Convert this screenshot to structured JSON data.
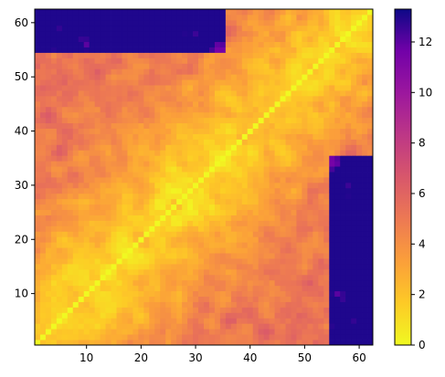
{
  "chart_data": {
    "type": "heatmap",
    "title": "",
    "xlabel": "",
    "ylabel": "",
    "n": 62,
    "x_range": [
      1,
      62
    ],
    "y_range": [
      1,
      62
    ],
    "x_ticks": [
      10,
      20,
      30,
      40,
      50,
      60
    ],
    "y_ticks": [
      10,
      20,
      30,
      40,
      50,
      60
    ],
    "colormap": "plasma_r",
    "colorbar": {
      "min": 0,
      "max": 13.3,
      "ticks": [
        0,
        2,
        4,
        6,
        8,
        10,
        12
      ]
    },
    "value_summary": {
      "diagonal": 0,
      "typical_near_diagonal": [
        1.5,
        5
      ],
      "typical_mid_offdiagonal": [
        3,
        7
      ],
      "max_regions": [
        {
          "rows": [
            55,
            62
          ],
          "cols": [
            1,
            35
          ],
          "approx_value": 11.5
        },
        {
          "rows": [
            1,
            35
          ],
          "cols": [
            55,
            62
          ],
          "approx_value": 11.5
        }
      ]
    },
    "grid": false,
    "legend": "colorbar-right"
  }
}
